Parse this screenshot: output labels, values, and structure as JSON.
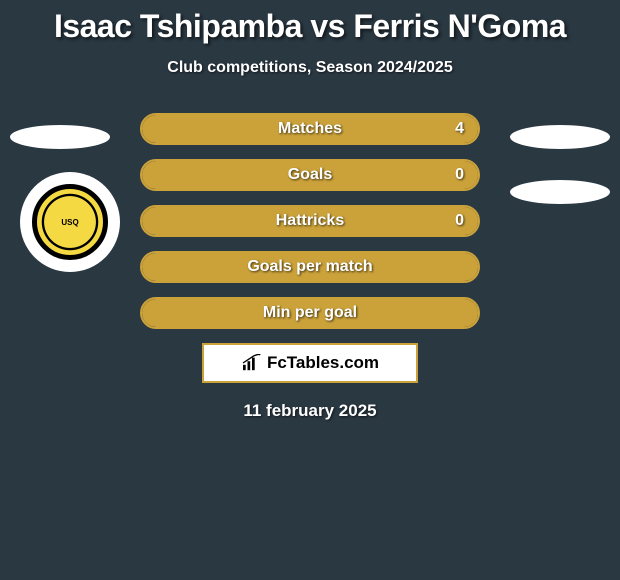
{
  "header": {
    "title": "Isaac Tshipamba vs Ferris N'Goma",
    "subtitle": "Club competitions, Season 2024/2025"
  },
  "club_badge": {
    "text": "UNION SPORTIVE QUEVILLAISE",
    "ring_color": "#000000",
    "fill_color": "#f4d942"
  },
  "stats": {
    "bar_border_color": "#cba23a",
    "bar_fill_color": "#cba23a",
    "text_color": "#ffffff",
    "rows": [
      {
        "label": "Matches",
        "value": "4",
        "fill_pct": 100
      },
      {
        "label": "Goals",
        "value": "0",
        "fill_pct": 100
      },
      {
        "label": "Hattricks",
        "value": "0",
        "fill_pct": 100
      },
      {
        "label": "Goals per match",
        "value": "",
        "fill_pct": 100
      },
      {
        "label": "Min per goal",
        "value": "",
        "fill_pct": 100
      }
    ]
  },
  "brand": {
    "text": "FcTables.com",
    "box_bg": "#ffffff",
    "box_border": "#cba23a"
  },
  "date": "11 february 2025",
  "colors": {
    "page_bg": "#2a3842",
    "oval_bg": "#ffffff"
  }
}
